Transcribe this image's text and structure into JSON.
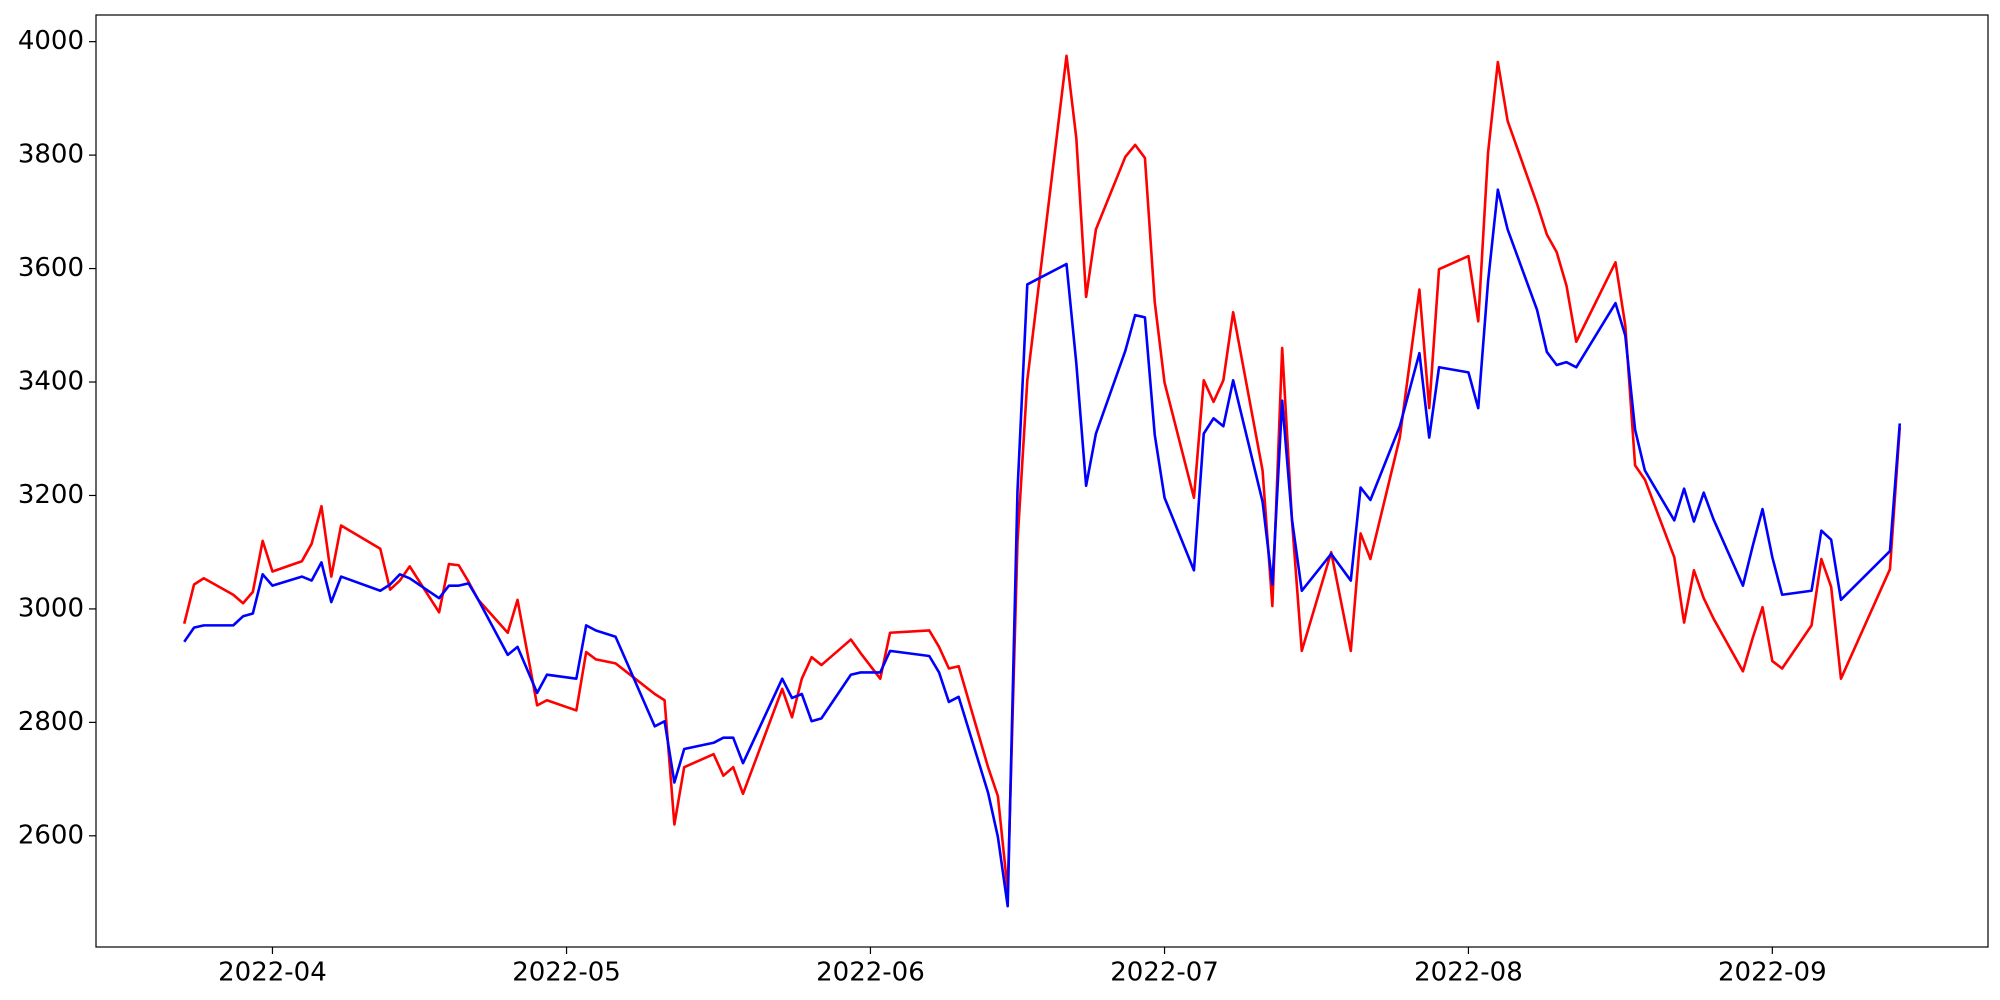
{
  "chart_data": {
    "type": "line",
    "x": [
      81,
      82,
      83,
      86,
      87,
      88,
      89,
      90,
      93,
      94,
      95,
      96,
      97,
      101,
      102,
      103,
      104,
      107,
      108,
      109,
      110,
      111,
      114,
      115,
      117,
      118,
      121,
      122,
      123,
      125,
      129,
      130,
      131,
      132,
      135,
      136,
      137,
      138,
      142,
      143,
      144,
      145,
      146,
      149,
      150,
      152,
      153,
      157,
      158,
      159,
      160,
      163,
      164,
      165,
      166,
      167,
      171,
      172,
      173,
      174,
      177,
      178,
      179,
      180,
      181,
      184,
      185,
      186,
      187,
      188,
      191,
      192,
      193,
      194,
      195,
      198,
      200,
      201,
      202,
      205,
      207,
      208,
      209,
      212,
      213,
      214,
      215,
      216,
      219,
      220,
      221,
      222,
      223,
      227,
      228,
      229,
      230,
      233,
      234,
      235,
      236,
      237,
      240,
      241,
      242,
      243,
      244,
      247,
      248,
      249,
      250,
      255,
      256
    ],
    "series": [
      {
        "color": "#ff0000",
        "values": [
          2974,
          3043,
          3054,
          3025,
          3010,
          3030,
          3120,
          3066,
          3084,
          3115,
          3181,
          3057,
          3147,
          3106,
          3034,
          3050,
          3075,
          2994,
          3079,
          3077,
          3048,
          3016,
          2958,
          3016,
          2830,
          2839,
          2821,
          2924,
          2911,
          2904,
          2850,
          2839,
          2620,
          2721,
          2744,
          2706,
          2721,
          2674,
          2859,
          2809,
          2877,
          2915,
          2901,
          2946,
          2922,
          2877,
          2958,
          2962,
          2933,
          2895,
          2899,
          2721,
          2670,
          2503,
          3118,
          3403,
          3975,
          3830,
          3550,
          3669,
          3797,
          3818,
          3795,
          3541,
          3399,
          3196,
          3403,
          3365,
          3403,
          3523,
          3244,
          3005,
          3460,
          3156,
          2926,
          3100,
          2926,
          3133,
          3088,
          3302,
          3563,
          3354,
          3599,
          3622,
          3507,
          3804,
          3964,
          3860,
          3714,
          3660,
          3629,
          3570,
          3471,
          3611,
          3500,
          3253,
          3228,
          3091,
          2976,
          3068,
          3019,
          2983,
          2890,
          2949,
          3003,
          2908,
          2895,
          2971,
          3088,
          3039,
          2877,
          3070,
          3320
        ]
      },
      {
        "color": "#0000ff",
        "values": [
          2942,
          2967,
          2971,
          2971,
          2987,
          2992,
          3061,
          3041,
          3057,
          3050,
          3082,
          3012,
          3057,
          3032,
          3043,
          3061,
          3054,
          3019,
          3041,
          3041,
          3045,
          3016,
          2919,
          2933,
          2852,
          2884,
          2877,
          2971,
          2962,
          2951,
          2793,
          2802,
          2694,
          2753,
          2764,
          2773,
          2773,
          2728,
          2877,
          2843,
          2850,
          2802,
          2807,
          2884,
          2888,
          2888,
          2926,
          2917,
          2888,
          2836,
          2845,
          2676,
          2598,
          2476,
          3208,
          3572,
          3608,
          3433,
          3217,
          3309,
          3455,
          3518,
          3514,
          3307,
          3196,
          3068,
          3309,
          3336,
          3322,
          3403,
          3189,
          3043,
          3367,
          3158,
          3032,
          3097,
          3050,
          3214,
          3192,
          3322,
          3451,
          3302,
          3426,
          3417,
          3354,
          3577,
          3739,
          3669,
          3527,
          3453,
          3430,
          3435,
          3426,
          3539,
          3482,
          3316,
          3244,
          3156,
          3212,
          3154,
          3205,
          3158,
          3041,
          3111,
          3176,
          3091,
          3025,
          3032,
          3138,
          3122,
          3016,
          3102,
          3327
        ]
      }
    ],
    "xlim": [
      72,
      265
    ],
    "xticks": [
      {
        "value": 90,
        "label": "2022-04"
      },
      {
        "value": 120,
        "label": "2022-05"
      },
      {
        "value": 151,
        "label": "2022-06"
      },
      {
        "value": 181,
        "label": "2022-07"
      },
      {
        "value": 212,
        "label": "2022-08"
      },
      {
        "value": 243,
        "label": "2022-09"
      }
    ],
    "ylim": [
      2404,
      4047
    ],
    "yticks": [
      2600,
      2800,
      3000,
      3200,
      3400,
      3600,
      3800,
      4000
    ]
  }
}
